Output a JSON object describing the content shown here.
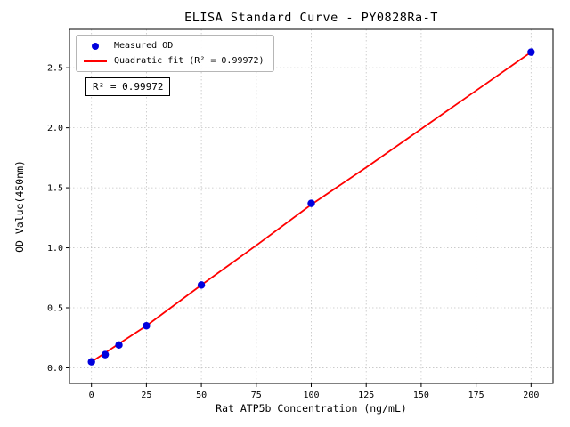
{
  "chart_data": {
    "type": "scatter",
    "title": "ELISA Standard Curve - PY0828Ra-T",
    "xlabel": "Rat ATP5b Concentration (ng/mL)",
    "ylabel": "OD Value(450nm)",
    "xlim": [
      -10,
      210
    ],
    "ylim": [
      -0.13,
      2.82
    ],
    "xticks": [
      0,
      25,
      50,
      75,
      100,
      125,
      150,
      175,
      200
    ],
    "yticks": [
      0.0,
      0.5,
      1.0,
      1.5,
      2.0,
      2.5
    ],
    "grid": true,
    "grid_style": "dotted",
    "grid_color": "#c3c3c3",
    "annotation": "R² = 0.99972",
    "r_squared": "0.99972",
    "legend": {
      "position": "upper-left",
      "entries": [
        {
          "label": "Measured OD",
          "marker": "dot",
          "color": "#0000dd"
        },
        {
          "label": "Quadratic fit (R² = 0.99972)",
          "marker": "line",
          "color": "#ff0000"
        }
      ]
    },
    "series": [
      {
        "name": "Quadratic fit",
        "type": "line",
        "color": "#ff0000",
        "x": [
          0,
          25,
          50,
          75,
          100,
          125,
          150,
          175,
          200
        ],
        "y": [
          0.05,
          0.35,
          0.69,
          1.02,
          1.36,
          1.67,
          1.99,
          2.31,
          2.63
        ]
      },
      {
        "name": "Measured OD",
        "type": "scatter",
        "color": "#0000dd",
        "x": [
          0,
          6.25,
          12.5,
          25,
          50,
          100,
          200
        ],
        "y": [
          0.05,
          0.11,
          0.19,
          0.35,
          0.69,
          1.37,
          2.63
        ]
      }
    ]
  }
}
